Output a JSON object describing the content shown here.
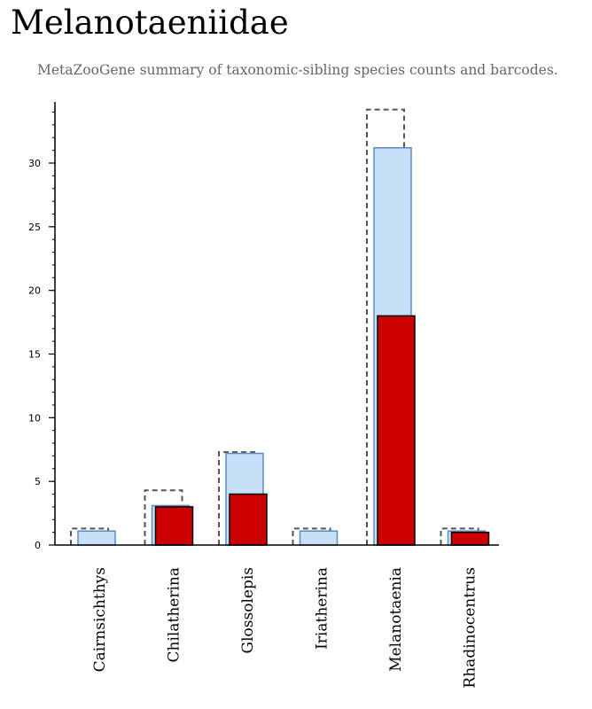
{
  "header": {
    "title": "Melanotaeniidae",
    "subtitle": "MetaZooGene summary of taxonomic-sibling species counts and barcodes."
  },
  "chart_data": {
    "type": "bar",
    "title": "Melanotaeniidae",
    "subtitle": "MetaZooGene summary of taxonomic-sibling species counts and barcodes.",
    "xlabel": "",
    "ylabel": "",
    "ylim": [
      0,
      35
    ],
    "yticks": [
      0,
      5,
      10,
      15,
      20,
      25,
      30
    ],
    "grid": false,
    "categories": [
      "Cairnsichthys",
      "Chilatherina",
      "Glossolepis",
      "Iriatherina",
      "Melanotaenia",
      "Rhadinocentrus"
    ],
    "series": [
      {
        "values": [
          1.3,
          4.3,
          7.3,
          1.3,
          34.2,
          1.3
        ],
        "color": "#555555",
        "style": "dashed-outline"
      },
      {
        "values": [
          1.1,
          3.1,
          7.2,
          1.1,
          31.2,
          1.1
        ],
        "color": "#c6e0f7",
        "stroke": "#5b8bc0"
      },
      {
        "values": [
          0,
          3,
          4,
          0,
          18,
          1
        ],
        "color": "#cc0000",
        "stroke": "#000000"
      }
    ]
  }
}
